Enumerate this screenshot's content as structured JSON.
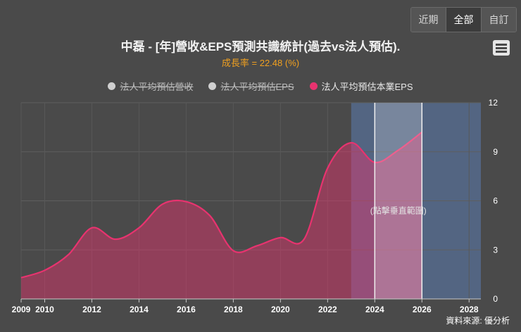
{
  "range_buttons": [
    {
      "label": "近期"
    },
    {
      "label": "全部",
      "active": true
    },
    {
      "label": "自訂"
    }
  ],
  "menu_icon": "hamburger-menu-icon",
  "title": "中磊 - [年]營收&EPS預測共識統計(過去vs法人預估).",
  "subtitle": "成長率 = 22.48 (%)",
  "legend": [
    {
      "label": "法人平均預估營收",
      "color": "#d0d0d0",
      "hidden": true
    },
    {
      "label": "法人平均預估EPS",
      "color": "#d0d0d0",
      "hidden": true
    },
    {
      "label": "法人平均預估本業EPS",
      "color": "#e8336f",
      "hidden": false
    }
  ],
  "source": "資料來源: 優分析",
  "chart_data": {
    "type": "area",
    "title": "中磊 - [年]營收&EPS預測共識統計(過去vs法人預估).",
    "series": [
      {
        "name": "法人平均預估本業EPS",
        "color": "#e8336f",
        "x": [
          2009,
          2010,
          2011,
          2012,
          2013,
          2014,
          2015,
          2016,
          2017,
          2018,
          2019,
          2020,
          2021,
          2022,
          2023,
          2024,
          2025,
          2026
        ],
        "values": [
          1.3,
          1.75,
          2.7,
          4.35,
          3.65,
          4.35,
          5.8,
          5.95,
          5.1,
          2.95,
          3.25,
          3.75,
          3.65,
          8.0,
          9.55,
          8.35,
          9.1,
          10.2
        ]
      }
    ],
    "x_ticks": [
      2009,
      2010,
      2012,
      2014,
      2016,
      2018,
      2020,
      2022,
      2024,
      2026,
      2028
    ],
    "xlim": [
      2009,
      2028.5
    ],
    "y_ticks": [
      0,
      3,
      6,
      9,
      12
    ],
    "ylim": [
      0,
      12
    ],
    "y_axis_side": "right",
    "forecast_band": {
      "from": 2023,
      "to": 2028.5,
      "color": "#5b7cb0"
    },
    "highlight_band": {
      "from": 2024,
      "to": 2026,
      "label": "(點擊垂直範圍)"
    },
    "grid": true
  }
}
